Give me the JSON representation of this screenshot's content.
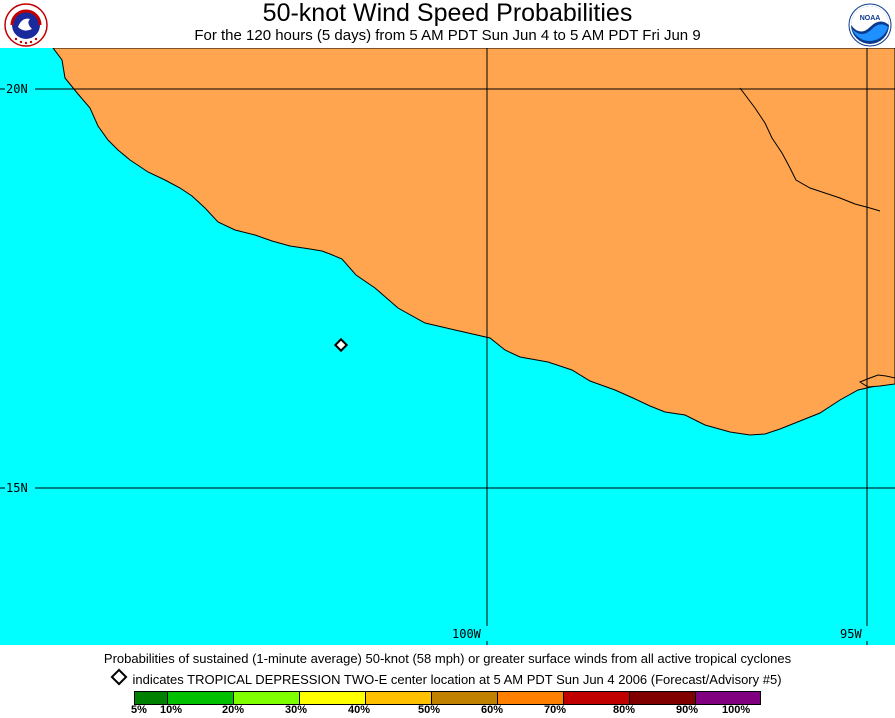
{
  "header": {
    "title": "50-knot Wind Speed Probabilities",
    "subtitle": "For the 120 hours (5 days) from 5 AM PDT Sun Jun 4 to 5 AM PDT Fri Jun 9"
  },
  "logos": {
    "left": {
      "icon": "nws-logo",
      "text": "NATIONAL WEATHER SERVICE"
    },
    "right": {
      "icon": "noaa-logo",
      "text": "NOAA"
    }
  },
  "map": {
    "colors": {
      "ocean": "#00ffff",
      "land": "#ffa54f",
      "coast": "#000000"
    },
    "grid": {
      "latitudes": [
        {
          "label": "20N"
        },
        {
          "label": "15N"
        }
      ],
      "longitudes": [
        {
          "label": "100W"
        },
        {
          "label": "95W"
        }
      ]
    },
    "storm_marker": {
      "icon": "diamond-icon"
    }
  },
  "captions": {
    "line1": "Probabilities of sustained (1-minute average) 50-knot (58 mph) or greater surface winds from all active tropical cyclones",
    "line2": "indicates TROPICAL DEPRESSION TWO-E center location at 5 AM PDT Sun Jun 4 2006 (Forecast/Advisory #5)"
  },
  "legend": {
    "bins": [
      {
        "color": "#008000"
      },
      {
        "color": "#00c000"
      },
      {
        "color": "#80ff00"
      },
      {
        "color": "#ffff00"
      },
      {
        "color": "#ffc000"
      },
      {
        "color": "#c08000"
      },
      {
        "color": "#ff8000"
      },
      {
        "color": "#c00000"
      },
      {
        "color": "#800000"
      },
      {
        "color": "#800080"
      }
    ],
    "labels": [
      "5%",
      "10%",
      "20%",
      "30%",
      "40%",
      "50%",
      "60%",
      "70%",
      "80%",
      "90%",
      "100%"
    ]
  }
}
